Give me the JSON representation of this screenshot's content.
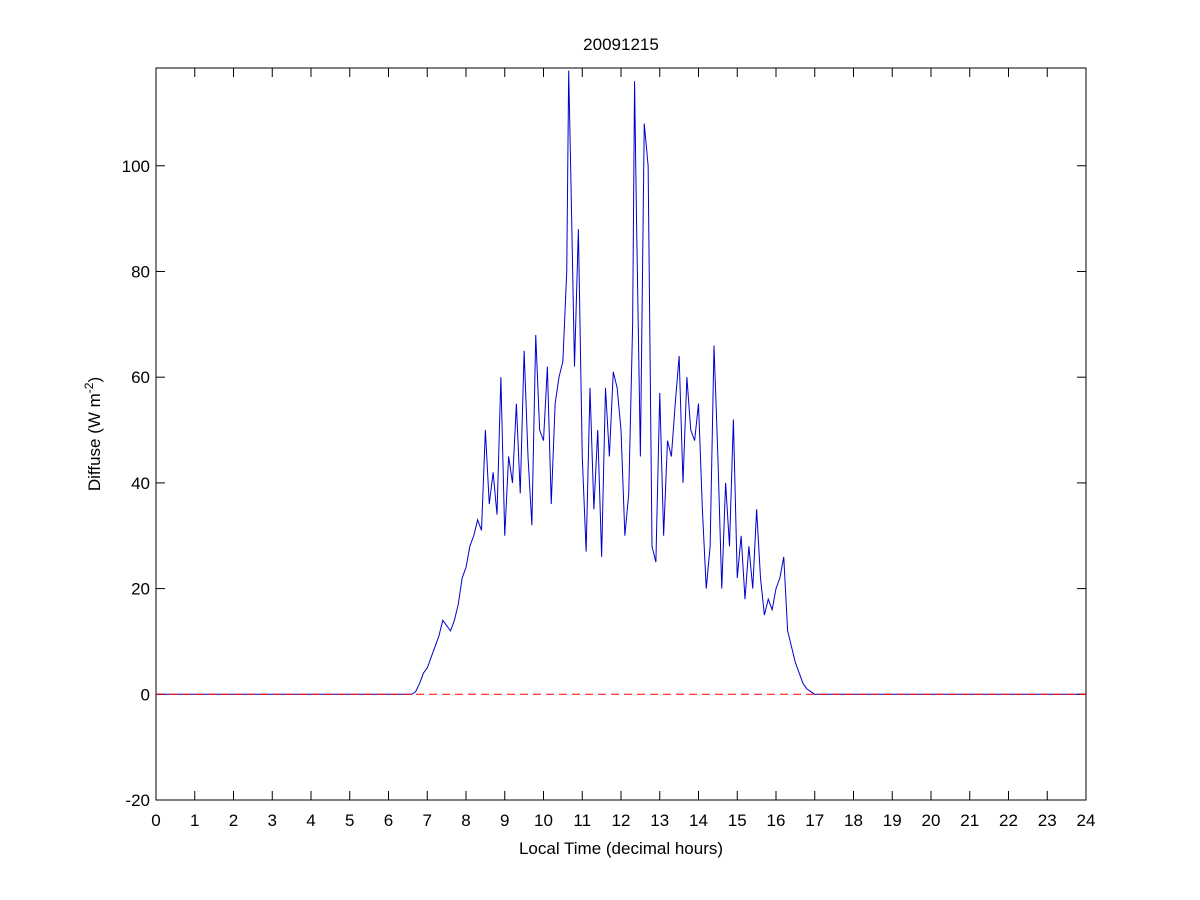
{
  "chart_data": {
    "type": "line",
    "title": "20091215",
    "xlabel": "Local Time (decimal hours)",
    "ylabel": {
      "text": "Diffuse (W m",
      "superscript": "-2",
      "suffix": ")"
    },
    "xlim": [
      0,
      24
    ],
    "ylim": [
      -20,
      118.5
    ],
    "xticks": [
      0,
      1,
      2,
      3,
      4,
      5,
      6,
      7,
      8,
      9,
      10,
      11,
      12,
      13,
      14,
      15,
      16,
      17,
      18,
      19,
      20,
      21,
      22,
      23,
      24
    ],
    "yticks": [
      -20,
      0,
      20,
      40,
      60,
      80,
      100
    ],
    "series": [
      {
        "color": "#0000cc",
        "style": "solid",
        "x": [
          0,
          6.5,
          6.6,
          6.7,
          6.8,
          6.9,
          7.0,
          7.1,
          7.2,
          7.3,
          7.4,
          7.5,
          7.6,
          7.7,
          7.8,
          7.9,
          8.0,
          8.1,
          8.2,
          8.3,
          8.4,
          8.5,
          8.6,
          8.7,
          8.8,
          8.9,
          9.0,
          9.1,
          9.2,
          9.3,
          9.4,
          9.5,
          9.6,
          9.7,
          9.8,
          9.9,
          10.0,
          10.1,
          10.2,
          10.3,
          10.4,
          10.5,
          10.6,
          10.65,
          10.7,
          10.8,
          10.9,
          11.0,
          11.1,
          11.2,
          11.3,
          11.4,
          11.5,
          11.6,
          11.7,
          11.8,
          11.9,
          12.0,
          12.1,
          12.2,
          12.3,
          12.35,
          12.4,
          12.5,
          12.6,
          12.7,
          12.8,
          12.9,
          13.0,
          13.1,
          13.2,
          13.3,
          13.4,
          13.5,
          13.6,
          13.7,
          13.8,
          13.9,
          14.0,
          14.1,
          14.2,
          14.3,
          14.4,
          14.5,
          14.6,
          14.7,
          14.8,
          14.9,
          15.0,
          15.1,
          15.2,
          15.3,
          15.4,
          15.5,
          15.6,
          15.7,
          15.8,
          15.9,
          16.0,
          16.1,
          16.2,
          16.3,
          16.4,
          16.5,
          16.6,
          16.7,
          16.8,
          16.9,
          17.0,
          17.2,
          24
        ],
        "values": [
          0,
          0,
          0,
          0.5,
          2,
          4,
          5,
          7,
          9,
          11,
          14,
          13,
          12,
          14,
          17,
          22,
          24,
          28,
          30,
          33,
          31,
          50,
          36,
          42,
          34,
          60,
          30,
          45,
          40,
          55,
          38,
          65,
          45,
          32,
          68,
          50,
          48,
          62,
          36,
          55,
          60,
          63,
          80,
          118,
          100,
          62,
          88,
          45,
          27,
          58,
          35,
          50,
          26,
          58,
          45,
          61,
          58,
          50,
          30,
          38,
          70,
          116,
          90,
          45,
          108,
          100,
          28,
          25,
          57,
          30,
          48,
          45,
          55,
          64,
          40,
          60,
          50,
          48,
          55,
          35,
          20,
          28,
          66,
          45,
          20,
          40,
          28,
          52,
          22,
          30,
          18,
          28,
          20,
          35,
          22,
          15,
          18,
          16,
          20,
          22,
          26,
          12,
          9,
          6,
          4,
          2,
          1,
          0.5,
          0,
          0,
          0
        ]
      },
      {
        "color": "#ff0000",
        "style": "dashed",
        "x": [
          0,
          24
        ],
        "values": [
          0,
          0
        ]
      }
    ]
  }
}
